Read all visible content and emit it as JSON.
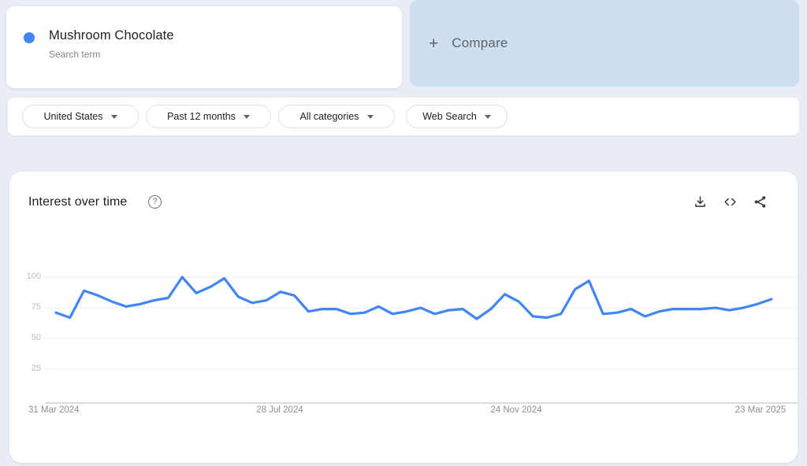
{
  "search_card": {
    "term": "Mushroom Chocolate",
    "type_label": "Search term",
    "dot_color": "#4285f4"
  },
  "compare_card": {
    "plus_icon": "+",
    "label": "Compare"
  },
  "filters": [
    {
      "label": "United States"
    },
    {
      "label": "Past 12 months"
    },
    {
      "label": "All categories"
    },
    {
      "label": "Web Search"
    }
  ],
  "chart_section": {
    "title": "Interest over time",
    "help_icon_glyph": "?",
    "action_icons": [
      "download-icon",
      "embed-icon",
      "share-icon"
    ]
  },
  "chart_data": {
    "type": "line",
    "title": "Interest over time",
    "x_range": [
      "31 Mar 2024",
      "23 Mar 2025"
    ],
    "x_interval": "weekly",
    "x_tick_labels": [
      "31 Mar 2024",
      "28 Jul 2024",
      "24 Nov 2024",
      "23 Mar 2025"
    ],
    "x_tick_indices": [
      0,
      17,
      34,
      51
    ],
    "yticks": [
      100,
      75,
      50,
      25
    ],
    "ylim": [
      0,
      100
    ],
    "grid": true,
    "legend": "none",
    "series": [
      {
        "name": "Mushroom Chocolate",
        "color": "#4285f4",
        "values": [
          71,
          67,
          89,
          85,
          80,
          76,
          78,
          81,
          83,
          100,
          87,
          92,
          99,
          84,
          79,
          81,
          88,
          85,
          72,
          74,
          74,
          70,
          71,
          76,
          70,
          72,
          75,
          70,
          73,
          74,
          66,
          74,
          86,
          80,
          68,
          67,
          70,
          90,
          97,
          70,
          71,
          74,
          68,
          72,
          74,
          74,
          74,
          75,
          73,
          75,
          78,
          82
        ]
      }
    ]
  },
  "colors": {
    "accent_blue": "#4285f4",
    "compare_card_bg": "#cfdff2",
    "page_bg": "#e8edf6",
    "gridline": "#ececec",
    "axis_line": "#cdcdcd"
  }
}
